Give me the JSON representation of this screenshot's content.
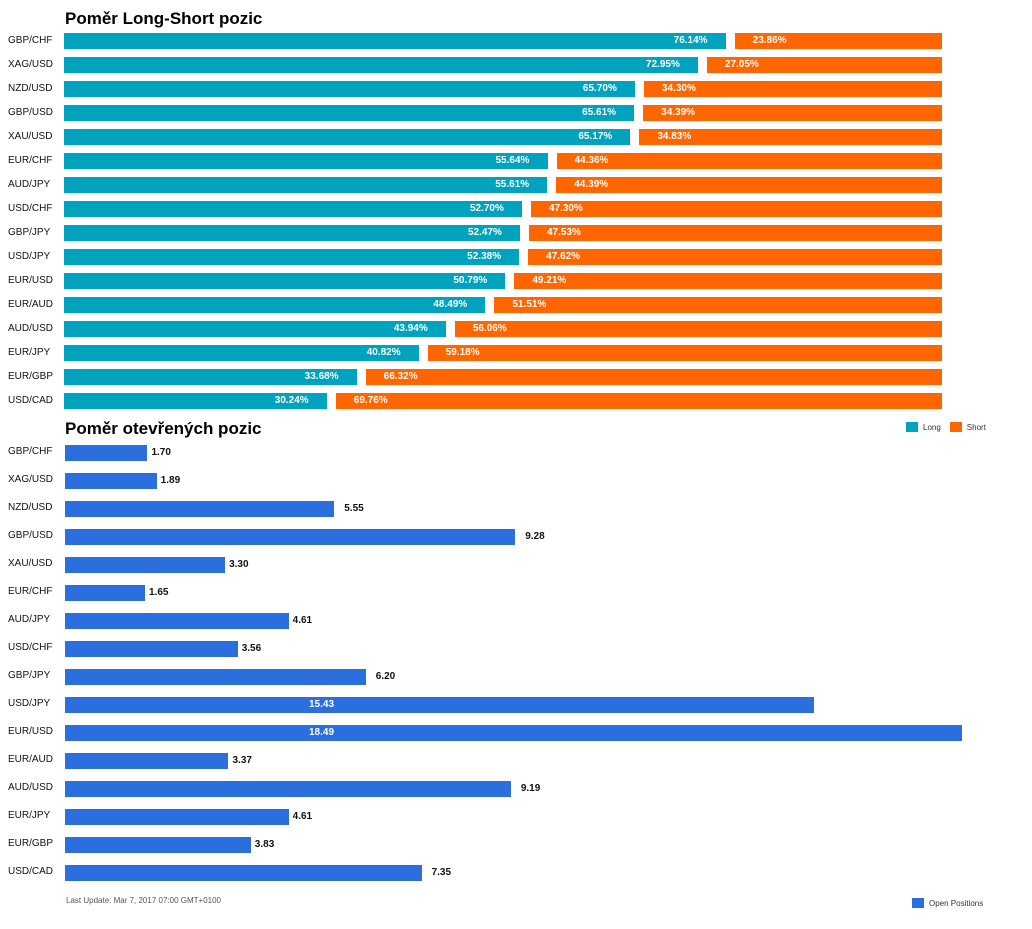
{
  "chart_data": [
    {
      "type": "bar",
      "orientation": "horizontal",
      "stacked": true,
      "title": "Poměr Long-Short pozic",
      "categories": [
        "GBP/CHF",
        "XAG/USD",
        "NZD/USD",
        "GBP/USD",
        "XAU/USD",
        "EUR/CHF",
        "AUD/JPY",
        "USD/CHF",
        "GBP/JPY",
        "USD/JPY",
        "EUR/USD",
        "EUR/AUD",
        "AUD/USD",
        "EUR/JPY",
        "EUR/GBP",
        "USD/CAD"
      ],
      "series": [
        {
          "name": "Long",
          "color": "#00a3bd",
          "values": [
            76.14,
            72.95,
            65.7,
            65.61,
            65.17,
            55.64,
            55.61,
            52.7,
            52.47,
            52.38,
            50.79,
            48.49,
            43.94,
            40.82,
            33.68,
            30.24
          ],
          "labels": [
            "76.14%",
            "72.95%",
            "65.70%",
            "65.61%",
            "65.17%",
            "55.64%",
            "55.61%",
            "52.70%",
            "52.47%",
            "52.38%",
            "50.79%",
            "48.49%",
            "43.94%",
            "40.82%",
            "33.68%",
            "30.24%"
          ]
        },
        {
          "name": "Short",
          "color": "#ff6600",
          "values": [
            23.86,
            27.05,
            34.3,
            34.39,
            34.83,
            44.36,
            44.39,
            47.3,
            47.53,
            47.62,
            49.21,
            51.51,
            56.06,
            59.18,
            66.32,
            69.76
          ],
          "labels": [
            "23.86%",
            "27.05%",
            "34.30%",
            "34.39%",
            "34.83%",
            "44.36%",
            "44.39%",
            "47.30%",
            "47.53%",
            "47.62%",
            "49.21%",
            "51.51%",
            "56.06%",
            "59.18%",
            "66.32%",
            "69.76%"
          ]
        }
      ],
      "xlim": [
        0,
        100
      ],
      "legend": "bottom-right"
    },
    {
      "type": "bar",
      "orientation": "horizontal",
      "title": "Poměr otevřených pozic",
      "categories": [
        "GBP/CHF",
        "XAG/USD",
        "NZD/USD",
        "GBP/USD",
        "XAU/USD",
        "EUR/CHF",
        "AUD/JPY",
        "USD/CHF",
        "GBP/JPY",
        "USD/JPY",
        "EUR/USD",
        "EUR/AUD",
        "AUD/USD",
        "EUR/JPY",
        "EUR/GBP",
        "USD/CAD"
      ],
      "series": [
        {
          "name": "Open Positions",
          "color": "#2b6fde",
          "values": [
            1.7,
            1.89,
            5.55,
            9.28,
            3.3,
            1.65,
            4.61,
            3.56,
            6.2,
            15.43,
            18.49,
            3.37,
            9.19,
            4.61,
            3.83,
            7.35
          ],
          "labels": [
            "1.70",
            "1.89",
            "5.55",
            "9.28",
            "3.30",
            "1.65",
            "4.61",
            "3.56",
            "6.20",
            "15.43",
            "18.49",
            "3.37",
            "9.19",
            "4.61",
            "3.83",
            "7.35"
          ]
        }
      ],
      "xlim": [
        0,
        18.49
      ],
      "legend": "bottom-right"
    }
  ],
  "footer": "Last Update: Mar 7, 2017 07:00 GMT+0100"
}
